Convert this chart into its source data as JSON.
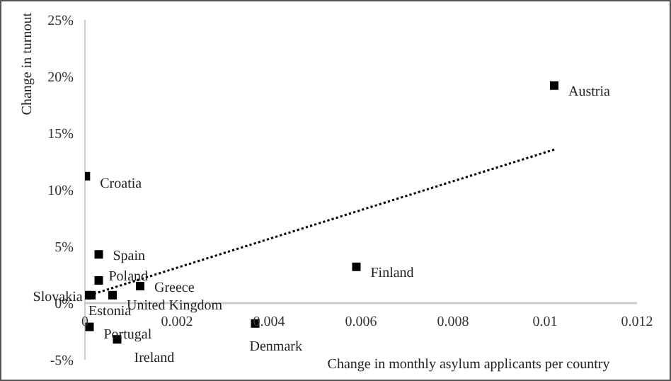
{
  "chart_data": {
    "type": "scatter",
    "xlabel": "Change in monthly asylum applicants per country",
    "ylabel": "Change in turnout",
    "xlim": [
      0,
      0.012
    ],
    "xticks": [
      0,
      0.002,
      0.004,
      0.006,
      0.008,
      0.01,
      0.012
    ],
    "ylim": [
      -5,
      25
    ],
    "yticks": [
      {
        "value": -5,
        "label": "-5%"
      },
      {
        "value": 0,
        "label": "0%"
      },
      {
        "value": 5,
        "label": "5%"
      },
      {
        "value": 10,
        "label": "10%"
      },
      {
        "value": 15,
        "label": "15%"
      },
      {
        "value": 20,
        "label": "20%"
      },
      {
        "value": 25,
        "label": "25%"
      }
    ],
    "grid": false,
    "legend": false,
    "marker": "square",
    "series": [
      {
        "name": "Croatia",
        "color": "#000000",
        "x": [
          2e-05
        ],
        "values": [
          11.2
        ]
      },
      {
        "name": "Spain",
        "color": "#000000",
        "x": [
          0.0003
        ],
        "values": [
          4.3
        ]
      },
      {
        "name": "Poland",
        "color": "#000000",
        "x": [
          0.0003
        ],
        "values": [
          2.0
        ]
      },
      {
        "name": "Slovakia",
        "color": "#000000",
        "x": [
          4e-05
        ],
        "values": [
          0.7
        ]
      },
      {
        "name": "Estonia",
        "color": "#000000",
        "x": [
          0.00014
        ],
        "values": [
          0.7
        ]
      },
      {
        "name": "United Kingdom",
        "color": "#000000",
        "x": [
          0.0006
        ],
        "values": [
          0.7
        ]
      },
      {
        "name": "Greece",
        "color": "#000000",
        "x": [
          0.0012
        ],
        "values": [
          1.5
        ]
      },
      {
        "name": "Portugal",
        "color": "#000000",
        "x": [
          0.0001
        ],
        "values": [
          -2.1
        ]
      },
      {
        "name": "Ireland",
        "color": "#000000",
        "x": [
          0.0007
        ],
        "values": [
          -3.2
        ]
      },
      {
        "name": "Denmark",
        "color": "#000000",
        "x": [
          0.0037
        ],
        "values": [
          -1.8
        ]
      },
      {
        "name": "Finland",
        "color": "#000000",
        "x": [
          0.0059
        ],
        "values": [
          3.2
        ]
      },
      {
        "name": "Austria",
        "color": "#000000",
        "x": [
          0.0102
        ],
        "values": [
          19.2
        ]
      },
      {
        "type": "line",
        "color": "#000000",
        "line_style": "dotted",
        "marker": "none",
        "x": [
          0.0001,
          0.01024
        ],
        "values": [
          0.7,
          13.6
        ]
      }
    ]
  }
}
